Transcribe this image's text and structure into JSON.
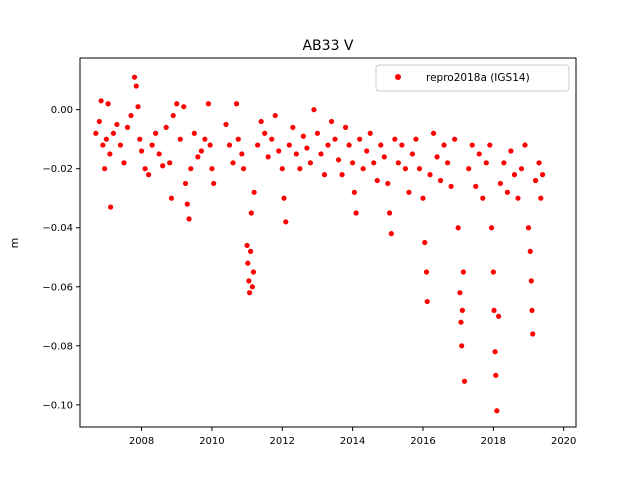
{
  "chart_data": {
    "type": "scatter",
    "title": "AB33 V",
    "xlabel": "",
    "ylabel": "m",
    "xlim": [
      2006.25,
      2020.35
    ],
    "ylim": [
      -0.1075,
      0.0175
    ],
    "xticks": [
      2008,
      2010,
      2012,
      2014,
      2016,
      2018,
      2020
    ],
    "xtick_labels": [
      "2008",
      "2010",
      "2012",
      "2014",
      "2016",
      "2018",
      "2020"
    ],
    "yticks": [
      0.0,
      -0.02,
      -0.04,
      -0.06,
      -0.08,
      -0.1
    ],
    "ytick_labels": [
      "0.00",
      "−0.02",
      "−0.04",
      "−0.06",
      "−0.08",
      "−0.10"
    ],
    "grid": false,
    "legend_position": "top-right",
    "series": [
      {
        "name": "repro2018a (IGS14)",
        "color": "#ff0000",
        "marker": "circle",
        "points": [
          [
            2006.7,
            -0.008
          ],
          [
            2006.8,
            -0.004
          ],
          [
            2006.85,
            0.003
          ],
          [
            2006.9,
            -0.012
          ],
          [
            2006.95,
            -0.02
          ],
          [
            2007.0,
            -0.01
          ],
          [
            2007.05,
            0.002
          ],
          [
            2007.1,
            -0.015
          ],
          [
            2007.12,
            -0.033
          ],
          [
            2007.2,
            -0.008
          ],
          [
            2007.3,
            -0.005
          ],
          [
            2007.4,
            -0.012
          ],
          [
            2007.5,
            -0.018
          ],
          [
            2007.6,
            -0.006
          ],
          [
            2007.7,
            -0.002
          ],
          [
            2007.8,
            0.011
          ],
          [
            2007.85,
            0.008
          ],
          [
            2007.9,
            0.001
          ],
          [
            2007.95,
            -0.01
          ],
          [
            2008.0,
            -0.014
          ],
          [
            2008.1,
            -0.02
          ],
          [
            2008.2,
            -0.022
          ],
          [
            2008.3,
            -0.012
          ],
          [
            2008.4,
            -0.008
          ],
          [
            2008.5,
            -0.015
          ],
          [
            2008.6,
            -0.019
          ],
          [
            2008.7,
            -0.006
          ],
          [
            2008.8,
            -0.018
          ],
          [
            2008.85,
            -0.03
          ],
          [
            2008.9,
            -0.002
          ],
          [
            2009.0,
            0.002
          ],
          [
            2009.1,
            -0.01
          ],
          [
            2009.2,
            0.001
          ],
          [
            2009.25,
            -0.025
          ],
          [
            2009.3,
            -0.032
          ],
          [
            2009.35,
            -0.037
          ],
          [
            2009.4,
            -0.02
          ],
          [
            2009.5,
            -0.008
          ],
          [
            2009.6,
            -0.016
          ],
          [
            2009.7,
            -0.014
          ],
          [
            2009.8,
            -0.01
          ],
          [
            2009.9,
            0.002
          ],
          [
            2009.95,
            -0.012
          ],
          [
            2010.0,
            -0.02
          ],
          [
            2010.05,
            -0.025
          ],
          [
            2010.4,
            -0.005
          ],
          [
            2010.5,
            -0.012
          ],
          [
            2010.6,
            -0.018
          ],
          [
            2010.7,
            0.002
          ],
          [
            2010.75,
            -0.01
          ],
          [
            2010.85,
            -0.015
          ],
          [
            2010.9,
            -0.02
          ],
          [
            2011.0,
            -0.046
          ],
          [
            2011.02,
            -0.052
          ],
          [
            2011.05,
            -0.058
          ],
          [
            2011.07,
            -0.062
          ],
          [
            2011.1,
            -0.048
          ],
          [
            2011.12,
            -0.035
          ],
          [
            2011.15,
            -0.06
          ],
          [
            2011.18,
            -0.055
          ],
          [
            2011.2,
            -0.028
          ],
          [
            2011.3,
            -0.012
          ],
          [
            2011.4,
            -0.004
          ],
          [
            2011.5,
            -0.008
          ],
          [
            2011.6,
            -0.016
          ],
          [
            2011.7,
            -0.01
          ],
          [
            2011.8,
            -0.002
          ],
          [
            2011.9,
            -0.014
          ],
          [
            2012.0,
            -0.02
          ],
          [
            2012.05,
            -0.03
          ],
          [
            2012.1,
            -0.038
          ],
          [
            2012.2,
            -0.012
          ],
          [
            2012.3,
            -0.006
          ],
          [
            2012.4,
            -0.015
          ],
          [
            2012.5,
            -0.02
          ],
          [
            2012.6,
            -0.009
          ],
          [
            2012.7,
            -0.013
          ],
          [
            2012.8,
            -0.018
          ],
          [
            2012.9,
            0.0
          ],
          [
            2013.0,
            -0.008
          ],
          [
            2013.1,
            -0.015
          ],
          [
            2013.2,
            -0.022
          ],
          [
            2013.3,
            -0.012
          ],
          [
            2013.4,
            -0.004
          ],
          [
            2013.5,
            -0.01
          ],
          [
            2013.6,
            -0.017
          ],
          [
            2013.7,
            -0.022
          ],
          [
            2013.8,
            -0.006
          ],
          [
            2013.9,
            -0.012
          ],
          [
            2014.0,
            -0.018
          ],
          [
            2014.05,
            -0.028
          ],
          [
            2014.1,
            -0.035
          ],
          [
            2014.2,
            -0.01
          ],
          [
            2014.3,
            -0.02
          ],
          [
            2014.4,
            -0.014
          ],
          [
            2014.5,
            -0.008
          ],
          [
            2014.6,
            -0.018
          ],
          [
            2014.7,
            -0.024
          ],
          [
            2014.8,
            -0.012
          ],
          [
            2014.9,
            -0.016
          ],
          [
            2015.0,
            -0.025
          ],
          [
            2015.05,
            -0.035
          ],
          [
            2015.1,
            -0.042
          ],
          [
            2015.2,
            -0.01
          ],
          [
            2015.3,
            -0.018
          ],
          [
            2015.4,
            -0.012
          ],
          [
            2015.5,
            -0.02
          ],
          [
            2015.6,
            -0.028
          ],
          [
            2015.7,
            -0.015
          ],
          [
            2015.8,
            -0.01
          ],
          [
            2015.9,
            -0.02
          ],
          [
            2016.0,
            -0.03
          ],
          [
            2016.05,
            -0.045
          ],
          [
            2016.1,
            -0.055
          ],
          [
            2016.12,
            -0.065
          ],
          [
            2016.2,
            -0.022
          ],
          [
            2016.3,
            -0.008
          ],
          [
            2016.4,
            -0.016
          ],
          [
            2016.5,
            -0.024
          ],
          [
            2016.6,
            -0.012
          ],
          [
            2016.7,
            -0.018
          ],
          [
            2016.8,
            -0.026
          ],
          [
            2016.9,
            -0.01
          ],
          [
            2017.0,
            -0.04
          ],
          [
            2017.05,
            -0.062
          ],
          [
            2017.08,
            -0.072
          ],
          [
            2017.1,
            -0.08
          ],
          [
            2017.12,
            -0.068
          ],
          [
            2017.15,
            -0.055
          ],
          [
            2017.18,
            -0.092
          ],
          [
            2017.3,
            -0.02
          ],
          [
            2017.4,
            -0.012
          ],
          [
            2017.5,
            -0.026
          ],
          [
            2017.6,
            -0.015
          ],
          [
            2017.7,
            -0.03
          ],
          [
            2017.8,
            -0.018
          ],
          [
            2017.9,
            -0.012
          ],
          [
            2017.95,
            -0.04
          ],
          [
            2018.0,
            -0.055
          ],
          [
            2018.02,
            -0.068
          ],
          [
            2018.05,
            -0.082
          ],
          [
            2018.07,
            -0.09
          ],
          [
            2018.1,
            -0.102
          ],
          [
            2018.15,
            -0.07
          ],
          [
            2018.2,
            -0.025
          ],
          [
            2018.3,
            -0.018
          ],
          [
            2018.4,
            -0.028
          ],
          [
            2018.5,
            -0.014
          ],
          [
            2018.6,
            -0.022
          ],
          [
            2018.7,
            -0.03
          ],
          [
            2018.8,
            -0.02
          ],
          [
            2018.9,
            -0.012
          ],
          [
            2019.0,
            -0.04
          ],
          [
            2019.05,
            -0.048
          ],
          [
            2019.08,
            -0.058
          ],
          [
            2019.1,
            -0.068
          ],
          [
            2019.12,
            -0.076
          ],
          [
            2019.2,
            -0.024
          ],
          [
            2019.3,
            -0.018
          ],
          [
            2019.35,
            -0.03
          ],
          [
            2019.4,
            -0.022
          ]
        ]
      }
    ]
  }
}
